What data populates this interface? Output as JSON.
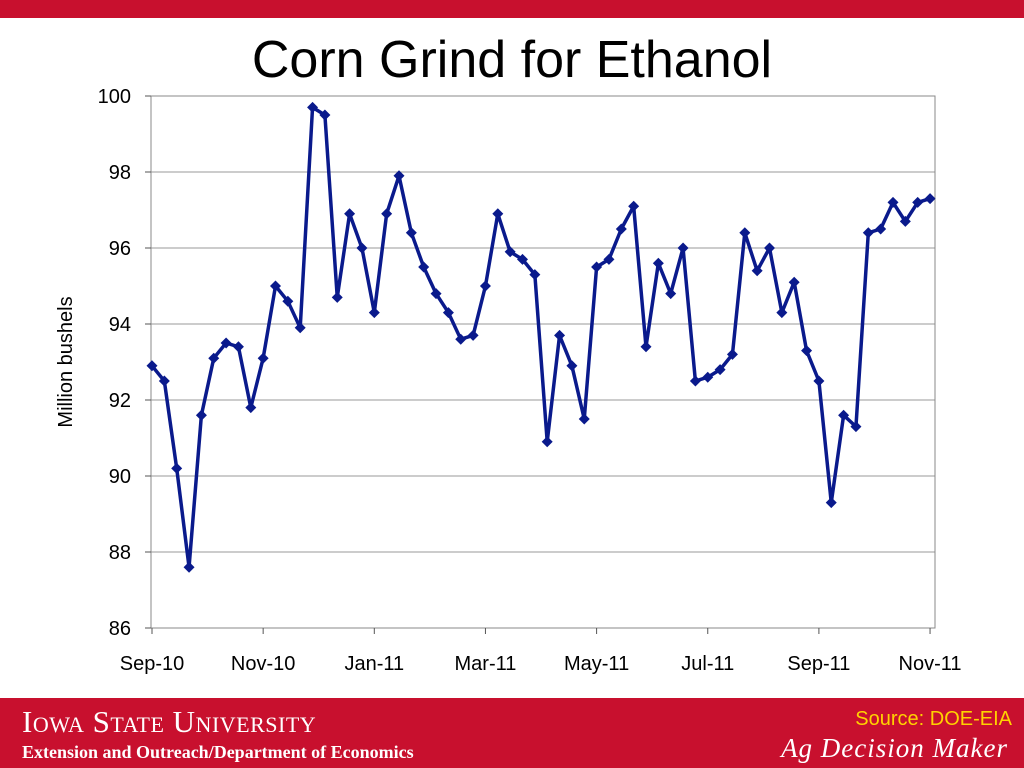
{
  "slide": {
    "title": "Corn Grind for Ethanol",
    "source": "Source: DOE-EIA",
    "university": "Iowa State University",
    "department": "Extension and Outreach/Department of Economics",
    "brand": "Ag Decision Maker",
    "colors": {
      "accent": "#c8102e",
      "series": "#0a1a8c",
      "source_text": "#ffd200"
    }
  },
  "chart_data": {
    "type": "line",
    "title": "Corn Grind for Ethanol",
    "xlabel": "",
    "ylabel": "Million bushels",
    "ylim": [
      86,
      100
    ],
    "yticks": [
      86,
      88,
      90,
      92,
      94,
      96,
      98,
      100
    ],
    "grid": true,
    "x_tick_labels": [
      "Sep-10",
      "Nov-10",
      "Jan-11",
      "Mar-11",
      "May-11",
      "Jul-11",
      "Sep-11",
      "Nov-11"
    ],
    "series": [
      {
        "marker": "diamond",
        "values": [
          92.9,
          92.5,
          90.2,
          87.6,
          91.6,
          93.1,
          93.5,
          93.4,
          91.8,
          93.1,
          95.0,
          94.6,
          93.9,
          99.7,
          99.5,
          94.7,
          96.9,
          96.0,
          94.3,
          96.9,
          97.9,
          96.4,
          95.5,
          94.8,
          94.3,
          93.6,
          93.7,
          95.0,
          96.9,
          95.9,
          95.7,
          95.3,
          90.9,
          93.7,
          92.9,
          91.5,
          95.5,
          95.7,
          96.5,
          97.1,
          93.4,
          95.6,
          94.8,
          96.0,
          92.5,
          92.6,
          92.8,
          93.2,
          96.4,
          95.4,
          96.0,
          94.3,
          95.1,
          93.3,
          92.5,
          89.3,
          91.6,
          91.3,
          96.4,
          96.5,
          97.2,
          96.7,
          97.2,
          97.3
        ]
      }
    ]
  }
}
